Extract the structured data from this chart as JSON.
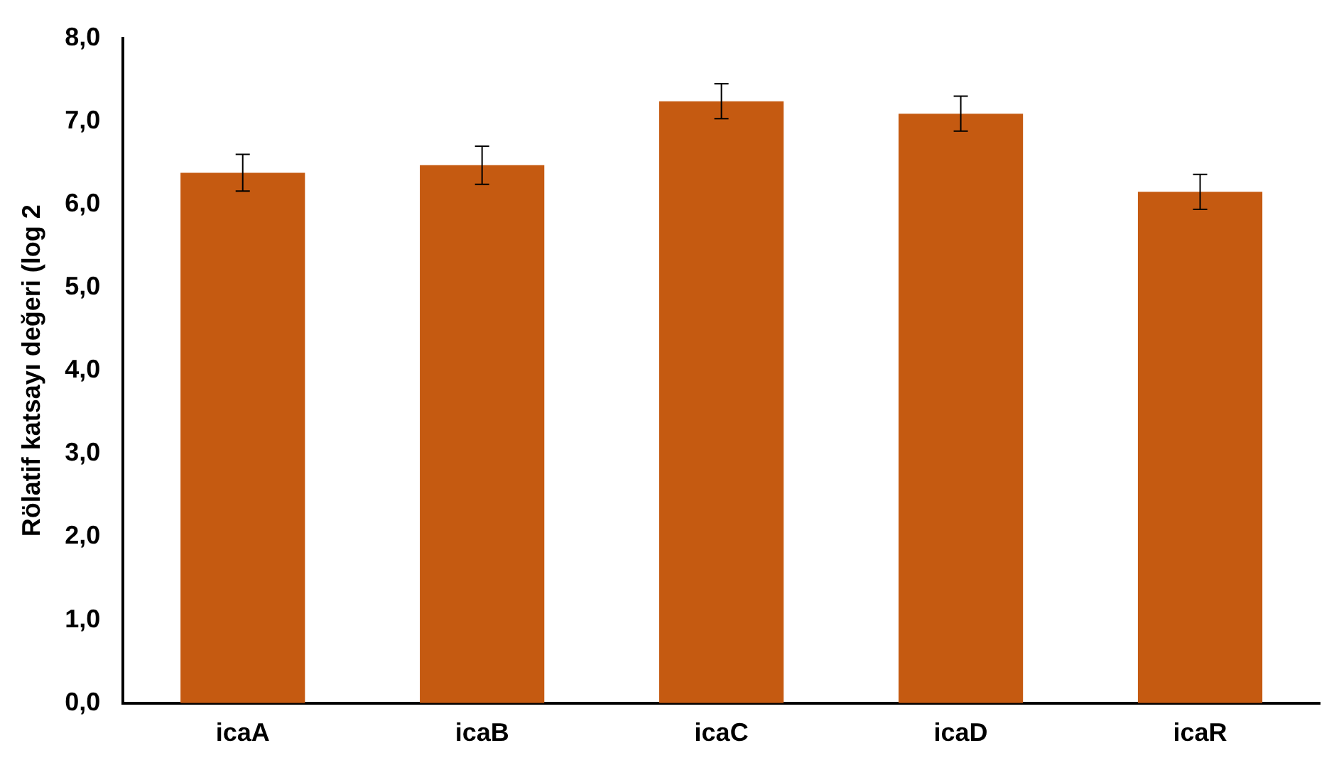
{
  "chart_data": {
    "type": "bar",
    "ylabel": "Rölatif katsayı değeri (log 2",
    "categories": [
      "icaA",
      "icaB",
      "icaC",
      "icaD",
      "icaR"
    ],
    "values": [
      6.38,
      6.47,
      7.24,
      7.09,
      6.15
    ],
    "errors": [
      0.22,
      0.23,
      0.21,
      0.21,
      0.21
    ],
    "color": "#c55a11",
    "ylim": [
      0,
      8
    ],
    "yticks": [
      {
        "value": 0,
        "label": "0,0"
      },
      {
        "value": 1,
        "label": "1,0"
      },
      {
        "value": 2,
        "label": "2,0"
      },
      {
        "value": 3,
        "label": "3,0"
      },
      {
        "value": 4,
        "label": "4,0"
      },
      {
        "value": 5,
        "label": "5,0"
      },
      {
        "value": 6,
        "label": "6,0"
      },
      {
        "value": 7,
        "label": "7,0"
      },
      {
        "value": 8,
        "label": "8,0"
      }
    ],
    "grid": false,
    "legend": false
  }
}
